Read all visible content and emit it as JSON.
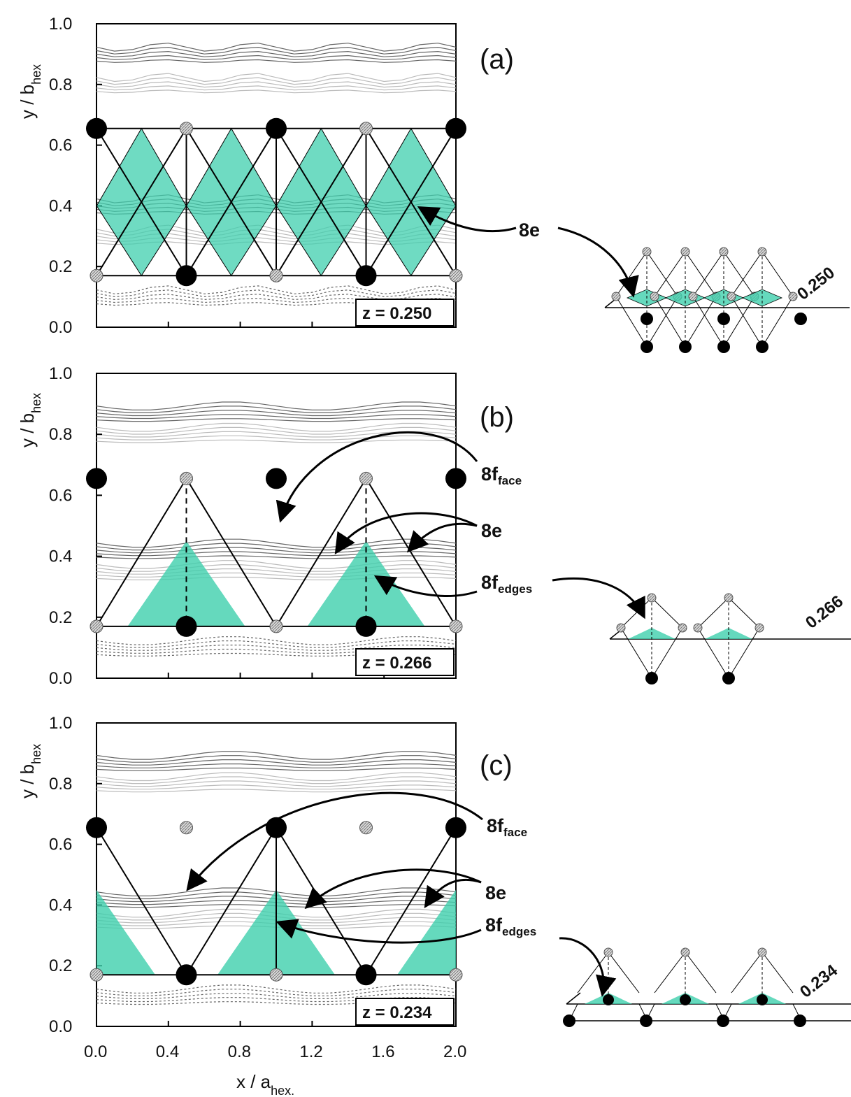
{
  "figure": {
    "axis": {
      "ylabel_main": "y / b",
      "ylabel_sub": "hex",
      "xlabel_main": "x / a",
      "xlabel_sub": "hex."
    },
    "y_ticks": [
      "0.0",
      "0.2",
      "0.4",
      "0.6",
      "0.8",
      "1.0"
    ],
    "x_ticks": [
      "0.0",
      "0.4",
      "0.8",
      "1.2",
      "1.6",
      "2.0"
    ],
    "colors": {
      "tetrahedron": "#3fcfad",
      "atom_dark": "#000000",
      "atom_hatched": "#c8c8c8"
    },
    "panels": [
      {
        "label": "(a)",
        "z_label": "z = 0.250",
        "level": "0.250",
        "sites": [
          {
            "main": "8e",
            "sub": ""
          }
        ]
      },
      {
        "label": "(b)",
        "z_label": "z = 0.266",
        "level": "0.266",
        "sites": [
          {
            "main": "8f",
            "sub": "face"
          },
          {
            "main": "8e",
            "sub": ""
          },
          {
            "main": "8f",
            "sub": "edges"
          }
        ]
      },
      {
        "label": "(c)",
        "z_label": "z = 0.234",
        "level": "0.234",
        "sites": [
          {
            "main": "8f",
            "sub": "face"
          },
          {
            "main": "8e",
            "sub": ""
          },
          {
            "main": "8f",
            "sub": "edges"
          }
        ]
      }
    ]
  }
}
